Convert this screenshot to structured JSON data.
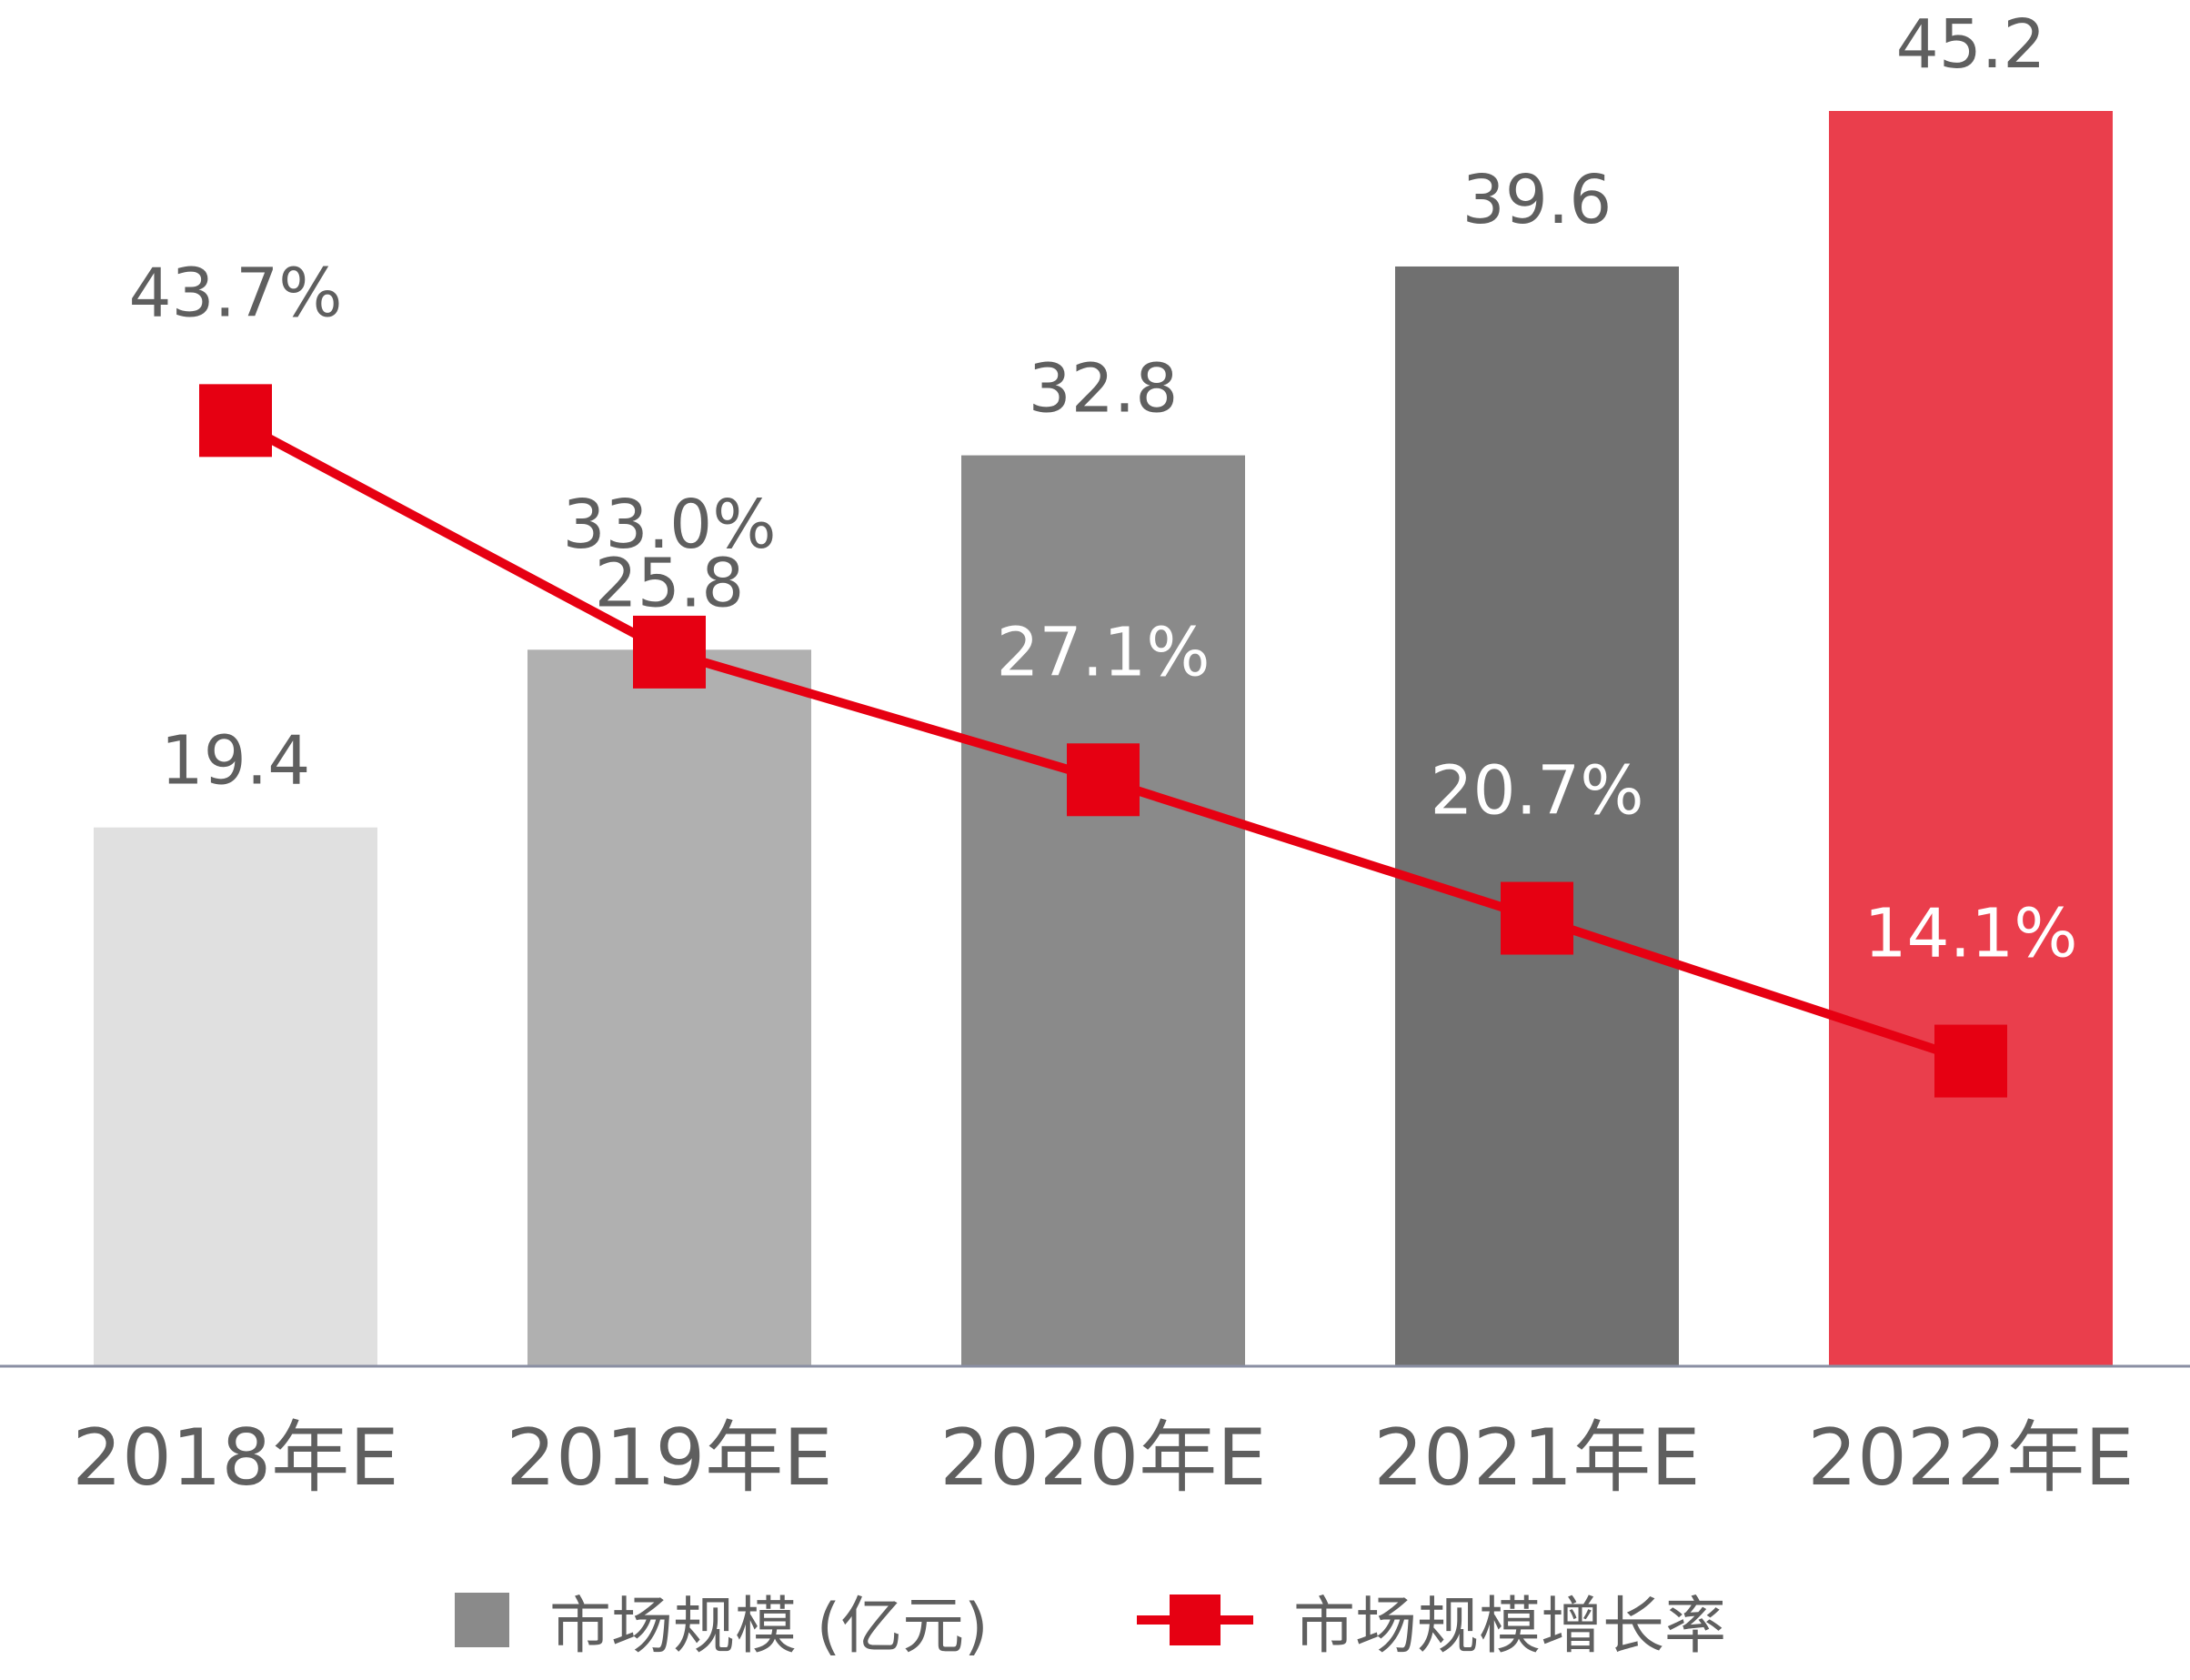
{
  "chart_data": {
    "type": "bar+line",
    "title": "",
    "categories": [
      "2018年E",
      "2019年E",
      "2020年E",
      "2021年E",
      "2022年E"
    ],
    "series": [
      {
        "name": "市场规模 (亿元)",
        "type": "bar",
        "values": [
          19.4,
          25.8,
          32.8,
          39.6,
          45.2
        ],
        "labels": [
          "19.4",
          "25.8",
          "32.8",
          "39.6",
          "45.2"
        ],
        "colors": [
          "#e0e0e0",
          "#b0b0b0",
          "#8a8a8a",
          "#707070",
          "#ea3e4c"
        ]
      },
      {
        "name": "市场规模增长率",
        "type": "line",
        "values": [
          43.7,
          33.0,
          27.1,
          20.7,
          14.1
        ],
        "labels": [
          "43.7%",
          "33.0%",
          "27.1%",
          "20.7%",
          "14.1%"
        ],
        "color": "#e60012"
      }
    ],
    "ylim_bar": [
      0,
      45.2
    ],
    "ylim_line": [
      0,
      55.4
    ],
    "grid": false,
    "legend_position": "bottom"
  },
  "colors": {
    "label_gray": "#5f5f5f",
    "axis": "#8a8fa3",
    "rate_on_bar": "#ffffff"
  },
  "legend": {
    "bar_label": "市场规模 (亿元)",
    "line_label": "市场规模增长率"
  }
}
